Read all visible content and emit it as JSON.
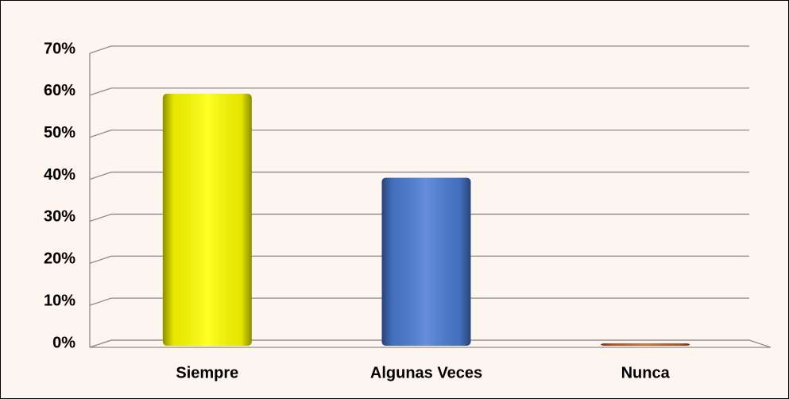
{
  "chart_data": {
    "type": "bar",
    "categories": [
      "Siempre",
      "Algunas Veces",
      "Nunca"
    ],
    "values": [
      60,
      40,
      0
    ],
    "colors": [
      "#ffff00",
      "#4a7bd3",
      "#c0602a"
    ],
    "ylim": [
      0,
      70
    ],
    "yticks": [
      {
        "value": 0,
        "label": "0%"
      },
      {
        "value": 10,
        "label": "10%"
      },
      {
        "value": 20,
        "label": "20%"
      },
      {
        "value": 30,
        "label": "30%"
      },
      {
        "value": 40,
        "label": "40%"
      },
      {
        "value": 50,
        "label": "50%"
      },
      {
        "value": 60,
        "label": "60%"
      },
      {
        "value": 70,
        "label": "70%"
      }
    ],
    "grid": true
  }
}
